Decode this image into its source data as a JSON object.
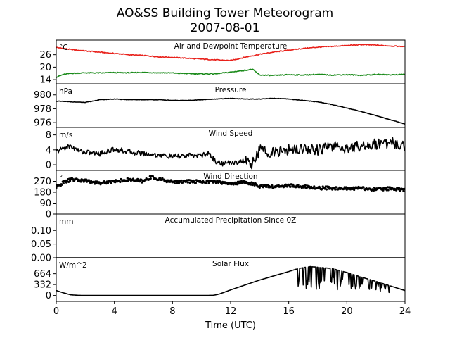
{
  "figure": {
    "title_line1": "AO&SS Building Tower Meteorogram",
    "title_line2": "2007-08-01",
    "xlabel": "Time (UTC)",
    "xticks": [
      "0",
      "4",
      "8",
      "12",
      "16",
      "20",
      "24"
    ]
  },
  "chart_data": [
    {
      "type": "line",
      "title": "Air and Dewpoint Temperature",
      "unit": "°C",
      "yticks": [
        14,
        20,
        26
      ],
      "ylim": [
        12,
        33
      ],
      "x_units": "hours UTC",
      "series": [
        {
          "color": "#e8201a",
          "x": [
            0,
            1,
            2,
            3,
            4,
            5,
            6,
            7,
            8,
            9,
            10,
            11,
            12,
            13,
            14,
            15,
            16,
            17,
            18,
            19,
            20,
            21,
            22,
            23,
            24
          ],
          "y": [
            29.5,
            28.5,
            27.8,
            27.2,
            26.6,
            26.0,
            25.6,
            25.0,
            24.7,
            24.3,
            23.9,
            23.5,
            23.2,
            24.8,
            26.2,
            27.3,
            28.2,
            29.0,
            29.6,
            30.0,
            30.4,
            30.8,
            30.6,
            30.2,
            29.9
          ]
        },
        {
          "color": "#1a8a1a",
          "x": [
            0,
            0.5,
            1,
            2,
            3,
            4,
            5,
            6,
            7,
            8,
            9,
            10,
            11,
            12,
            13,
            13.5,
            14,
            15,
            16,
            17,
            18,
            19,
            20,
            21,
            22,
            23,
            24
          ],
          "y": [
            15.2,
            16.5,
            17.0,
            17.3,
            17.2,
            17.4,
            17.3,
            17.5,
            17.3,
            17.2,
            16.9,
            16.8,
            16.8,
            17.6,
            18.5,
            19.0,
            16.2,
            16.0,
            16.4,
            16.2,
            16.5,
            16.2,
            16.4,
            16.1,
            16.5,
            16.3,
            16.6
          ]
        }
      ]
    },
    {
      "type": "line",
      "title": "Pressure",
      "unit": "hPa",
      "yticks": [
        976,
        978,
        980
      ],
      "ylim": [
        975.3,
        981.6
      ],
      "x_units": "hours UTC",
      "series": [
        {
          "color": "#000000",
          "x": [
            0,
            1,
            2,
            3,
            4,
            5,
            6,
            7,
            8,
            9,
            10,
            11,
            12,
            13,
            14,
            15,
            16,
            17,
            18,
            19,
            20,
            21,
            22,
            23,
            24
          ],
          "y": [
            979.1,
            979.0,
            978.9,
            979.3,
            979.4,
            979.3,
            979.3,
            979.3,
            979.2,
            979.2,
            979.3,
            979.4,
            979.5,
            979.4,
            979.4,
            979.5,
            979.4,
            979.2,
            979.0,
            978.6,
            978.1,
            977.6,
            977.0,
            976.4,
            975.8
          ]
        }
      ]
    },
    {
      "type": "line",
      "title": "Wind Speed",
      "unit": "m/s",
      "yticks": [
        0,
        4,
        8
      ],
      "ylim": [
        -1.5,
        10
      ],
      "x_units": "hours UTC",
      "series": [
        {
          "color": "#000000",
          "x": [
            0,
            0.5,
            1,
            1.5,
            2,
            3,
            4,
            5,
            6,
            7,
            8,
            9,
            10,
            10.5,
            11,
            11.5,
            12,
            13,
            13.5,
            14,
            15,
            16,
            17,
            18,
            19,
            20,
            21,
            22,
            23,
            24
          ],
          "y": [
            3.5,
            4.5,
            5.0,
            3.8,
            3.4,
            3.0,
            4.2,
            3.5,
            3.0,
            2.6,
            2.2,
            2.4,
            2.6,
            3.0,
            0.8,
            0.3,
            0.6,
            1.0,
            0.2,
            4.0,
            3.2,
            4.0,
            4.5,
            4.0,
            5.0,
            4.5,
            5.2,
            5.5,
            6.0,
            5.0
          ]
        }
      ]
    },
    {
      "type": "scatter",
      "title": "Wind Direction",
      "unit": "°",
      "yticks": [
        0,
        90,
        180,
        270
      ],
      "ylim": [
        0,
        360
      ],
      "x_units": "hours UTC",
      "series": [
        {
          "color": "#000000",
          "x": [
            0,
            0.5,
            1,
            2,
            3,
            4,
            5,
            6,
            6.5,
            7,
            8,
            9,
            10,
            11,
            12,
            13,
            14,
            15,
            16,
            17,
            18,
            19,
            20,
            21,
            22,
            23,
            24
          ],
          "y": [
            220,
            260,
            285,
            275,
            255,
            270,
            285,
            270,
            305,
            290,
            265,
            270,
            268,
            265,
            250,
            265,
            230,
            225,
            235,
            225,
            215,
            215,
            210,
            212,
            205,
            210,
            200
          ]
        }
      ]
    },
    {
      "type": "line",
      "title": "Accumulated Precipitation Since 0Z",
      "unit": "mm",
      "yticks": [
        "0.00",
        "0.05",
        "0.10"
      ],
      "ylim": [
        0,
        0.16
      ],
      "x_units": "hours UTC",
      "series": [
        {
          "color": "#000000",
          "x": [
            0,
            24
          ],
          "y": [
            0,
            0
          ]
        }
      ]
    },
    {
      "type": "line",
      "title": "Solar Flux",
      "unit": "W/m^2",
      "yticks": [
        0,
        332,
        664
      ],
      "ylim": [
        -180,
        1150
      ],
      "x_units": "hours UTC",
      "series": [
        {
          "color": "#000000",
          "x": [
            0,
            0.5,
            1,
            1.5,
            2,
            4,
            6,
            8,
            10,
            10.8,
            11.2,
            12,
            13,
            14,
            15,
            16,
            16.5,
            17,
            17.5,
            18,
            19,
            20,
            21,
            22,
            23,
            24
          ],
          "y": [
            150,
            80,
            20,
            5,
            0,
            0,
            0,
            0,
            0,
            5,
            40,
            170,
            320,
            470,
            600,
            730,
            800,
            850,
            880,
            860,
            820,
            700,
            560,
            430,
            290,
            150
          ]
        }
      ]
    }
  ]
}
